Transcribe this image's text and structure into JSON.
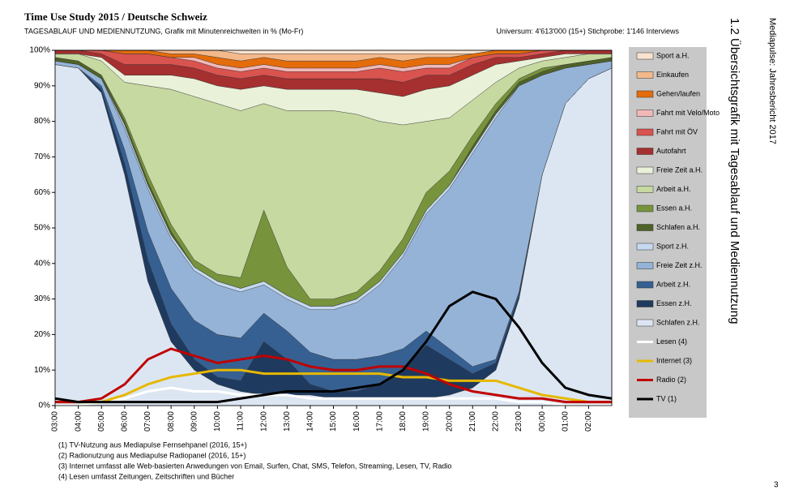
{
  "chart_data": {
    "type": "area",
    "stacked": true,
    "title": "Time Use Study 2015 / Deutsche Schweiz",
    "subtitle": "TAGESABLAUF UND MEDIENNUTZUNG, Grafik mit Minutenreichweiten in % (Mo-Fr)",
    "note": "Universum: 4'613'000 (15+) Stichprobe: 1'146 Interviews",
    "x": [
      3,
      4,
      5,
      6,
      7,
      8,
      9,
      10,
      11,
      12,
      13,
      14,
      15,
      16,
      17,
      18,
      19,
      20,
      21,
      22,
      23,
      24,
      25,
      26,
      27
    ],
    "xlim": [
      3,
      27
    ],
    "xticks": [
      {
        "value": 3,
        "label": "03:00"
      },
      {
        "value": 4,
        "label": "04:00"
      },
      {
        "value": 5,
        "label": "05:00"
      },
      {
        "value": 6,
        "label": "06:00"
      },
      {
        "value": 7,
        "label": "07:00"
      },
      {
        "value": 8,
        "label": "08:00"
      },
      {
        "value": 9,
        "label": "09:00"
      },
      {
        "value": 10,
        "label": "10:00"
      },
      {
        "value": 11,
        "label": "11:00"
      },
      {
        "value": 12,
        "label": "12:00"
      },
      {
        "value": 13,
        "label": "13:00"
      },
      {
        "value": 14,
        "label": "14:00"
      },
      {
        "value": 15,
        "label": "15:00"
      },
      {
        "value": 16,
        "label": "16:00"
      },
      {
        "value": 17,
        "label": "17:00"
      },
      {
        "value": 18,
        "label": "18:00"
      },
      {
        "value": 19,
        "label": "19:00"
      },
      {
        "value": 20,
        "label": "20:00"
      },
      {
        "value": 21,
        "label": "21:00"
      },
      {
        "value": 22,
        "label": "22:00"
      },
      {
        "value": 23,
        "label": "23:00"
      },
      {
        "value": 24,
        "label": "00:00"
      },
      {
        "value": 25,
        "label": "01:00"
      },
      {
        "value": 26,
        "label": "02:00"
      }
    ],
    "ylim": [
      0,
      100
    ],
    "yticks": [
      {
        "value": 0,
        "label": "0%"
      },
      {
        "value": 10,
        "label": "10%"
      },
      {
        "value": 20,
        "label": "20%"
      },
      {
        "value": 30,
        "label": "30%"
      },
      {
        "value": 40,
        "label": "40%"
      },
      {
        "value": 50,
        "label": "50%"
      },
      {
        "value": 60,
        "label": "60%"
      },
      {
        "value": 70,
        "label": "70%"
      },
      {
        "value": 80,
        "label": "80%"
      },
      {
        "value": 90,
        "label": "90%"
      },
      {
        "value": 100,
        "label": "100%"
      }
    ],
    "series": [
      {
        "name": "Schlafen z.H.",
        "color": "#dce6f2",
        "values": [
          96,
          95,
          88,
          65,
          35,
          18,
          10,
          6,
          4,
          3,
          3,
          3,
          2,
          2,
          2,
          2,
          2,
          3,
          5,
          10,
          30,
          65,
          85,
          92,
          95
        ]
      },
      {
        "name": "Essen z.H.",
        "color": "#1f3a5f",
        "values": [
          0,
          0,
          1,
          3,
          6,
          5,
          3,
          2,
          3,
          15,
          10,
          3,
          2,
          2,
          4,
          8,
          15,
          10,
          4,
          2,
          1,
          0,
          0,
          0,
          0
        ]
      },
      {
        "name": "Arbeit z.H.",
        "color": "#366092",
        "values": [
          0,
          0,
          1,
          4,
          8,
          10,
          11,
          12,
          12,
          8,
          8,
          9,
          9,
          9,
          8,
          6,
          4,
          3,
          2,
          1,
          1,
          0,
          0,
          0,
          0
        ]
      },
      {
        "name": "Freie Zeit z.H.",
        "color": "#95b3d7",
        "values": [
          1,
          1,
          2,
          6,
          12,
          14,
          14,
          14,
          13,
          8,
          9,
          12,
          14,
          16,
          20,
          26,
          33,
          45,
          60,
          68,
          58,
          28,
          10,
          4,
          2
        ]
      },
      {
        "name": "Sport z.H.",
        "color": "#c5d9f1",
        "values": [
          0,
          0,
          0,
          1,
          1,
          1,
          1,
          1,
          1,
          1,
          1,
          1,
          1,
          1,
          1,
          1,
          1,
          1,
          1,
          1,
          0,
          0,
          0,
          0,
          0
        ]
      },
      {
        "name": "Schlafen a.H.",
        "color": "#4f6228",
        "values": [
          1,
          1,
          1,
          1,
          1,
          1,
          0,
          0,
          0,
          0,
          0,
          0,
          0,
          0,
          0,
          0,
          0,
          0,
          1,
          1,
          1,
          1,
          1,
          1,
          1
        ]
      },
      {
        "name": "Essen a.H.",
        "color": "#77933c",
        "values": [
          0,
          0,
          0,
          1,
          2,
          2,
          2,
          2,
          3,
          20,
          8,
          2,
          2,
          2,
          3,
          4,
          5,
          4,
          3,
          2,
          1,
          1,
          0,
          0,
          0
        ]
      },
      {
        "name": "Arbeit a.H.",
        "color": "#c6d9a0",
        "values": [
          1,
          2,
          4,
          10,
          25,
          38,
          46,
          48,
          47,
          30,
          44,
          53,
          53,
          50,
          42,
          32,
          20,
          15,
          10,
          6,
          3,
          2,
          2,
          2,
          1
        ]
      },
      {
        "name": "Freie Zeit a.H.",
        "color": "#eaf1d9",
        "values": [
          0,
          0,
          1,
          2,
          3,
          4,
          5,
          5,
          6,
          5,
          6,
          6,
          6,
          7,
          8,
          8,
          9,
          9,
          7,
          5,
          2,
          1,
          1,
          0,
          0
        ]
      },
      {
        "name": "Autofahrt",
        "color": "#a5302f",
        "values": [
          1,
          1,
          1,
          3,
          3,
          3,
          3,
          3,
          3,
          3,
          3,
          3,
          3,
          3,
          4,
          4,
          4,
          3,
          3,
          2,
          1,
          1,
          1,
          1,
          1
        ]
      },
      {
        "name": "Fahrt mit ÖV",
        "color": "#d9534f",
        "values": [
          0,
          0,
          1,
          3,
          3,
          2,
          2,
          2,
          2,
          2,
          2,
          2,
          2,
          2,
          3,
          3,
          2,
          2,
          2,
          1,
          1,
          1,
          0,
          0,
          0
        ]
      },
      {
        "name": "Fahrt mit Velo/Moto",
        "color": "#f2b8b8",
        "values": [
          0,
          0,
          0,
          0,
          0,
          0,
          1,
          1,
          1,
          1,
          1,
          1,
          1,
          1,
          1,
          1,
          1,
          1,
          0,
          0,
          0,
          0,
          0,
          0,
          0
        ]
      },
      {
        "name": "Gehen/laufen",
        "color": "#e46c0a",
        "values": [
          0,
          0,
          0,
          1,
          1,
          1,
          1,
          2,
          2,
          2,
          2,
          2,
          2,
          2,
          2,
          2,
          2,
          2,
          1,
          1,
          1,
          0,
          0,
          0,
          0
        ]
      },
      {
        "name": "Einkaufen",
        "color": "#f4b98a",
        "values": [
          0,
          0,
          0,
          0,
          0,
          1,
          1,
          2,
          2,
          1,
          2,
          2,
          2,
          2,
          1,
          2,
          1,
          1,
          0,
          0,
          0,
          0,
          0,
          0,
          0
        ]
      },
      {
        "name": "Sport a.H.",
        "color": "#f8e3cf",
        "values": [
          0,
          0,
          0,
          0,
          0,
          0,
          0,
          0,
          1,
          1,
          1,
          1,
          1,
          1,
          1,
          1,
          1,
          1,
          1,
          0,
          0,
          0,
          0,
          0,
          0
        ]
      },
      {
        "name": "Lesen (4)",
        "type": "line",
        "color": "#ffffff",
        "values": [
          0,
          0,
          1,
          2,
          4,
          5,
          4,
          4,
          3,
          3,
          3,
          2,
          2,
          2,
          2,
          2,
          2,
          2,
          2,
          2,
          1,
          1,
          0,
          0,
          0
        ]
      },
      {
        "name": "Internet (3)",
        "type": "line",
        "color": "#e6b800",
        "values": [
          1,
          1,
          1,
          3,
          6,
          8,
          9,
          10,
          10,
          9,
          9,
          9,
          9,
          9,
          9,
          8,
          8,
          7,
          7,
          7,
          5,
          3,
          2,
          1,
          1
        ]
      },
      {
        "name": "Radio (2)",
        "type": "line",
        "color": "#c00000",
        "values": [
          1,
          1,
          2,
          6,
          13,
          16,
          14,
          12,
          13,
          14,
          13,
          11,
          10,
          10,
          11,
          11,
          9,
          6,
          4,
          3,
          2,
          2,
          1,
          1,
          1
        ]
      },
      {
        "name": "TV (1)",
        "type": "line",
        "color": "#000000",
        "values": [
          2,
          1,
          1,
          1,
          1,
          1,
          1,
          1,
          2,
          3,
          4,
          4,
          4,
          5,
          6,
          10,
          18,
          28,
          32,
          30,
          22,
          12,
          5,
          3,
          2
        ]
      }
    ]
  },
  "footnotes": [
    "(1) TV-Nutzung aus Mediapulse Fernsehpanel (2016, 15+)",
    "(2) Radionutzung aus Mediapulse Radiopanel (2016, 15+)",
    "(3) Internet umfasst alle Web-basierten Anwedungen von Email, Surfen, Chat, SMS, Telefon, Streaming, Lesen, TV, Radio",
    "(4) Lesen umfasst Zeitungen, Zeitschriften und Bücher"
  ],
  "section": "1.2 Übersichtsgrafik mit Tagesablauf und Mediennutzung",
  "report": "Mediapulse: Jahresbericht 2017",
  "page": "3"
}
